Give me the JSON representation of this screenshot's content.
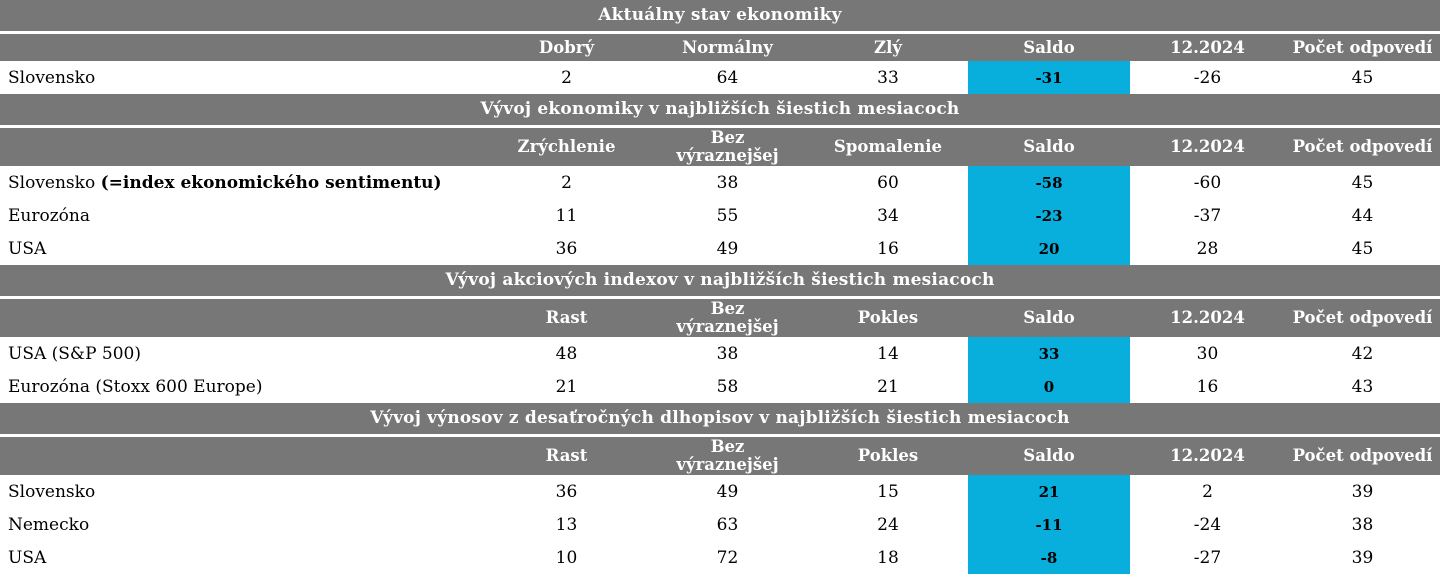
{
  "colors": {
    "section_header_bg": "#777777",
    "section_header_text": "#FFFFFF",
    "saldo_highlight_bg": "#08AEDC",
    "body_text": "#000000"
  },
  "chart_data": [
    {
      "type": "table",
      "title": "Aktuálny stav ekonomiky",
      "columns": [
        "Dobrý",
        "Normálny",
        "Zlý",
        "Saldo",
        "12.2024",
        "Počet odpovedí"
      ],
      "rows": [
        {
          "label": "Slovensko",
          "label_bold": "",
          "values": [
            2,
            64,
            33,
            -31,
            -26,
            45
          ]
        }
      ]
    },
    {
      "type": "table",
      "title": "Vývoj ekonomiky v najbližších šiestich mesiacoch",
      "columns": [
        "Zrýchlenie",
        "Bez\nvýraznejšej",
        "Spomalenie",
        "Saldo",
        "12.2024",
        "Počet odpovedí"
      ],
      "rows": [
        {
          "label": "Slovensko ",
          "label_bold": "(=index ekonomického sentimentu)",
          "values": [
            2,
            38,
            60,
            -58,
            -60,
            45
          ]
        },
        {
          "label": "Eurozóna",
          "label_bold": "",
          "values": [
            11,
            55,
            34,
            -23,
            -37,
            44
          ]
        },
        {
          "label": "USA",
          "label_bold": "",
          "values": [
            36,
            49,
            16,
            20,
            28,
            45
          ]
        }
      ]
    },
    {
      "type": "table",
      "title": "Vývoj akciových indexov v najbližších šiestich mesiacoch",
      "columns": [
        "Rast",
        "Bez\nvýraznejšej",
        "Pokles",
        "Saldo",
        "12.2024",
        "Počet odpovedí"
      ],
      "rows": [
        {
          "label": "USA (S&P 500)",
          "label_bold": "",
          "values": [
            48,
            38,
            14,
            33,
            30,
            42
          ]
        },
        {
          "label": "Eurozóna (Stoxx 600 Europe)",
          "label_bold": "",
          "values": [
            21,
            58,
            21,
            0,
            16,
            43
          ]
        }
      ]
    },
    {
      "type": "table",
      "title": "Vývoj výnosov z desaťročných dlhopisov v najbližších šiestich mesiacoch",
      "columns": [
        "Rast",
        "Bez\nvýraznejšej",
        "Pokles",
        "Saldo",
        "12.2024",
        "Počet odpovedí"
      ],
      "rows": [
        {
          "label": "Slovensko",
          "label_bold": "",
          "values": [
            36,
            49,
            15,
            21,
            2,
            39
          ]
        },
        {
          "label": "Nemecko",
          "label_bold": "",
          "values": [
            13,
            63,
            24,
            -11,
            -24,
            38
          ]
        },
        {
          "label": "USA",
          "label_bold": "",
          "values": [
            10,
            72,
            18,
            -8,
            -27,
            39
          ]
        }
      ]
    }
  ]
}
